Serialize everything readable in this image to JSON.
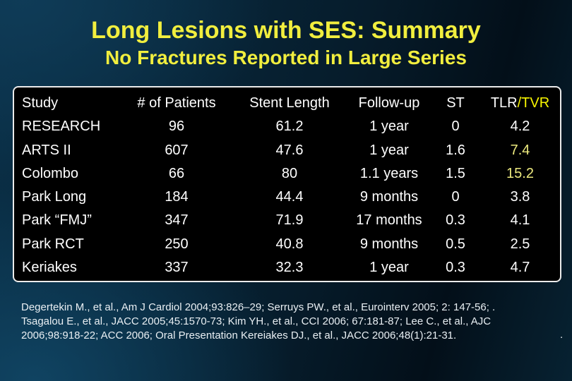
{
  "slide": {
    "title": "Long Lesions with SES: Summary",
    "subtitle": "No Fractures Reported in Large Series",
    "table": {
      "columns": [
        "Study",
        "# of Patients",
        "Stent Length",
        "Follow-up",
        "ST",
        "TLR/TVR"
      ],
      "header_tlr": "TLR",
      "header_tvr": "/TVR",
      "rows": [
        {
          "study": "RESEARCH",
          "patients": "96",
          "stent_length": "61.2",
          "follow_up": "1 year",
          "st": "0",
          "tlr_tvr": "4.2",
          "highlight": false
        },
        {
          "study": "ARTS II",
          "patients": "607",
          "stent_length": "47.6",
          "follow_up": "1 year",
          "st": "1.6",
          "tlr_tvr": "7.4",
          "highlight": true
        },
        {
          "study": "Colombo",
          "patients": "66",
          "stent_length": "80",
          "follow_up": "1.1 years",
          "st": "1.5",
          "tlr_tvr": "15.2",
          "highlight": true
        },
        {
          "study": "Park Long",
          "patients": "184",
          "stent_length": "44.4",
          "follow_up": "9 months",
          "st": "0",
          "tlr_tvr": "3.8",
          "highlight": false
        },
        {
          "study": "Park “FMJ”",
          "patients": "347",
          "stent_length": "71.9",
          "follow_up": "17 months",
          "st": "0.3",
          "tlr_tvr": "4.1",
          "highlight": false
        },
        {
          "study": "Park RCT",
          "patients": "250",
          "stent_length": "40.8",
          "follow_up": "9 months",
          "st": "0.5",
          "tlr_tvr": "2.5",
          "highlight": false
        },
        {
          "study": "Keriakes",
          "patients": "337",
          "stent_length": "32.3",
          "follow_up": "1 year",
          "st": "0.3",
          "tlr_tvr": "4.7",
          "highlight": false
        }
      ]
    },
    "footer": {
      "citation": "Degertekin M., et al., Am J Cardiol 2004;93:826–29; Serruys PW., et al., Eurointerv 2005; 2: 147-56; . Tsagalou E., et al., JACC 2005;45:1570-73; Kim YH., et al., CCI 2006; 67:181-87; Lee C., et al., AJC 2006;98:918-22; ACC 2006; Oral Presentation Kereiakes DJ., et al., JACC 2006;48(1):21-31.",
      "trailing_period": "."
    },
    "colors": {
      "title_yellow": "#f1ee3e",
      "header_tvr_yellow": "#f7f500",
      "value_highlight_yellow": "#ece97e",
      "table_background": "#000000",
      "table_border": "#ebebeb",
      "body_text": "#ffffff",
      "citation_text": "#e9eff3"
    }
  },
  "chart_data": {
    "type": "table",
    "title": "Long Lesions with SES: Summary",
    "subtitle": "No Fractures Reported in Large Series",
    "columns": [
      "Study",
      "# of Patients",
      "Stent Length",
      "Follow-up",
      "ST",
      "TLR/TVR"
    ],
    "rows": [
      [
        "RESEARCH",
        96,
        61.2,
        "1 year",
        0,
        4.2
      ],
      [
        "ARTS II",
        607,
        47.6,
        "1 year",
        1.6,
        7.4
      ],
      [
        "Colombo",
        66,
        80,
        "1.1 years",
        1.5,
        15.2
      ],
      [
        "Park Long",
        184,
        44.4,
        "9 months",
        0,
        3.8
      ],
      [
        "Park “FMJ”",
        347,
        71.9,
        "17 months",
        0.3,
        4.1
      ],
      [
        "Park RCT",
        250,
        40.8,
        "9 months",
        0.5,
        2.5
      ],
      [
        "Keriakes",
        337,
        32.3,
        "1 year",
        0.3,
        4.7
      ]
    ],
    "highlighted_cells": [
      [
        "ARTS II",
        "TLR/TVR"
      ],
      [
        "Colombo",
        "TLR/TVR"
      ]
    ]
  }
}
